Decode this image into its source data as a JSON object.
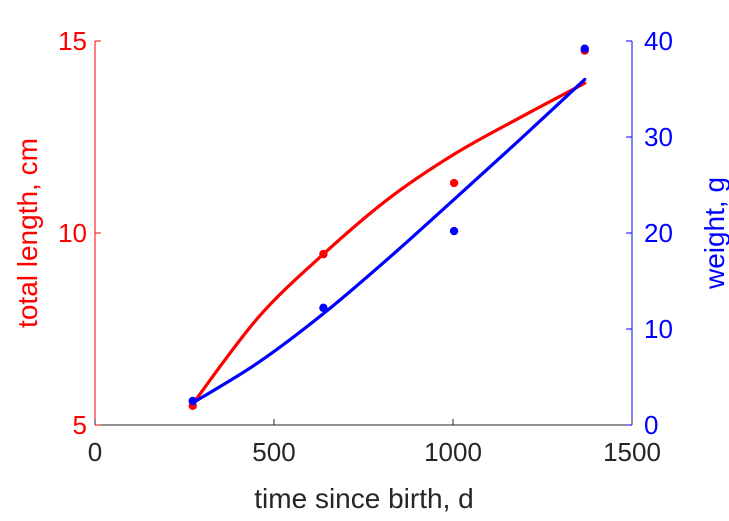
{
  "chart_data": {
    "type": "line",
    "xlabel": "time since birth, d",
    "ylabel_left": "total length, cm",
    "ylabel_right": "weight, g",
    "xlim": [
      0,
      1500
    ],
    "ylim_left": [
      5,
      15
    ],
    "ylim_right": [
      0,
      40
    ],
    "xticks": [
      "0",
      "500",
      "1000",
      "1500"
    ],
    "yticks_left": [
      "5",
      "10",
      "15"
    ],
    "yticks_right": [
      "0",
      "10",
      "20",
      "30",
      "40"
    ],
    "grid": false,
    "colors": {
      "length": "#ff0000",
      "weight": "#0000ff",
      "axes": "#262626"
    },
    "series": [
      {
        "axis": "left",
        "color": "#ff0000",
        "points": [
          [
            273,
            5.5
          ],
          [
            638,
            9.45
          ],
          [
            1003,
            11.3
          ],
          [
            1368,
            14.75
          ]
        ],
        "fit": [
          [
            273,
            5.55
          ],
          [
            456,
            7.8
          ],
          [
            638,
            9.45
          ],
          [
            821,
            10.9
          ],
          [
            1003,
            12.05
          ],
          [
            1186,
            13.0
          ],
          [
            1368,
            13.9
          ]
        ]
      },
      {
        "axis": "right",
        "color": "#0000ff",
        "points": [
          [
            273,
            2.5
          ],
          [
            638,
            12.2
          ],
          [
            1003,
            20.2
          ],
          [
            1368,
            39.2
          ]
        ],
        "fit": [
          [
            273,
            2.3
          ],
          [
            456,
            6.5
          ],
          [
            638,
            11.6
          ],
          [
            821,
            17.4
          ],
          [
            1003,
            23.5
          ],
          [
            1186,
            29.7
          ],
          [
            1368,
            36.0
          ]
        ]
      }
    ]
  }
}
